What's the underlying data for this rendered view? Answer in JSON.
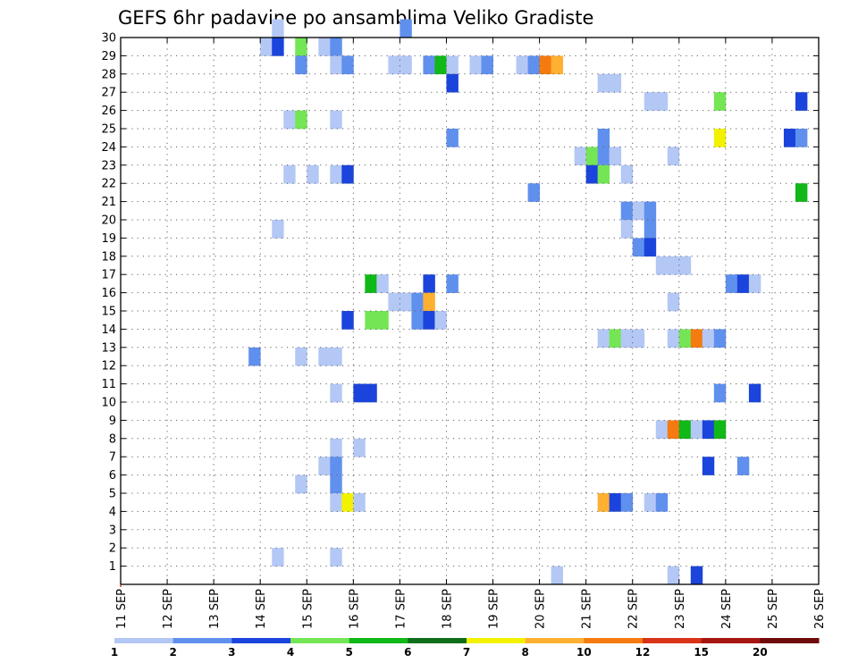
{
  "chart_data": {
    "type": "heatmap",
    "title": "GEFS 6hr padavine po ansamblima Veliko Gradiste",
    "xlabel": "",
    "ylabel": "",
    "grid": true,
    "x_tick_labels": [
      "11 SEP",
      "12 SEP",
      "13 SEP",
      "14 SEP",
      "15 SEP",
      "16 SEP",
      "17 SEP",
      "18 SEP",
      "19 SEP",
      "20 SEP",
      "21 SEP",
      "22 SEP",
      "23 SEP",
      "24 SEP",
      "25 SEP",
      "26 SEP"
    ],
    "x_range_steps": [
      0,
      60
    ],
    "steps_per_day": 4,
    "y_tick_labels": [
      "1",
      "2",
      "3",
      "4",
      "5",
      "6",
      "7",
      "8",
      "9",
      "10",
      "11",
      "12",
      "13",
      "14",
      "15",
      "16",
      "17",
      "18",
      "19",
      "20",
      "21",
      "22",
      "23",
      "24",
      "25",
      "26",
      "27",
      "28",
      "29",
      "30"
    ],
    "y_range": [
      0,
      30
    ],
    "legend": {
      "placement": "bottom",
      "labels": [
        "1",
        "2",
        "3",
        "4",
        "5",
        "6",
        "7",
        "8",
        "10",
        "12",
        "15",
        "20"
      ],
      "colors": [
        "#b4c8f5",
        "#6090ee",
        "#1a44dc",
        "#74e656",
        "#10b818",
        "#0f6e1a",
        "#f2f200",
        "#ffb030",
        "#f57a10",
        "#d83418",
        "#a81612",
        "#6e0a0a"
      ]
    },
    "bins": [
      1,
      2,
      3,
      4,
      5,
      6,
      7,
      8,
      10,
      12,
      15,
      20
    ],
    "cells": [
      [
        13,
        30,
        1
      ],
      [
        24,
        30,
        2
      ],
      [
        12,
        29,
        1
      ],
      [
        13,
        29,
        3
      ],
      [
        15,
        29,
        4
      ],
      [
        17,
        29,
        1
      ],
      [
        18,
        29,
        2
      ],
      [
        15,
        28,
        2
      ],
      [
        18,
        28,
        1
      ],
      [
        19,
        28,
        2
      ],
      [
        23,
        28,
        1
      ],
      [
        24,
        28,
        1
      ],
      [
        26,
        28,
        2
      ],
      [
        27,
        28,
        5
      ],
      [
        28,
        28,
        1
      ],
      [
        30,
        28,
        1
      ],
      [
        31,
        28,
        2
      ],
      [
        34,
        28,
        1
      ],
      [
        35,
        28,
        2
      ],
      [
        36,
        28,
        10
      ],
      [
        37,
        28,
        8
      ],
      [
        28,
        27,
        3
      ],
      [
        41,
        27,
        1
      ],
      [
        42,
        27,
        1
      ],
      [
        45,
        26,
        1
      ],
      [
        46,
        26,
        1
      ],
      [
        51,
        26,
        4
      ],
      [
        58,
        26,
        3
      ],
      [
        14,
        25,
        1
      ],
      [
        15,
        25,
        4
      ],
      [
        18,
        25,
        1
      ],
      [
        28,
        24,
        2
      ],
      [
        41,
        24,
        2
      ],
      [
        51,
        24,
        7
      ],
      [
        57,
        24,
        3
      ],
      [
        58,
        24,
        2
      ],
      [
        39,
        23,
        1
      ],
      [
        40,
        23,
        4
      ],
      [
        41,
        23,
        2
      ],
      [
        42,
        23,
        1
      ],
      [
        47,
        23,
        1
      ],
      [
        14,
        22,
        1
      ],
      [
        16,
        22,
        1
      ],
      [
        18,
        22,
        1
      ],
      [
        19,
        22,
        3
      ],
      [
        40,
        22,
        3
      ],
      [
        41,
        22,
        4
      ],
      [
        43,
        22,
        1
      ],
      [
        35,
        21,
        2
      ],
      [
        58,
        21,
        5
      ],
      [
        43,
        20,
        2
      ],
      [
        44,
        20,
        1
      ],
      [
        45,
        20,
        2
      ],
      [
        13,
        19,
        1
      ],
      [
        43,
        19,
        1
      ],
      [
        45,
        19,
        2
      ],
      [
        44,
        18,
        2
      ],
      [
        45,
        18,
        3
      ],
      [
        46,
        17,
        1
      ],
      [
        47,
        17,
        1
      ],
      [
        48,
        17,
        1
      ],
      [
        21,
        16,
        5
      ],
      [
        22,
        16,
        1
      ],
      [
        26,
        16,
        3
      ],
      [
        28,
        16,
        2
      ],
      [
        52,
        16,
        2
      ],
      [
        53,
        16,
        3
      ],
      [
        54,
        16,
        1
      ],
      [
        23,
        15,
        1
      ],
      [
        24,
        15,
        1
      ],
      [
        25,
        15,
        2
      ],
      [
        26,
        15,
        8
      ],
      [
        47,
        15,
        1
      ],
      [
        19,
        14,
        3
      ],
      [
        21,
        14,
        4
      ],
      [
        22,
        14,
        4
      ],
      [
        25,
        14,
        2
      ],
      [
        26,
        14,
        3
      ],
      [
        27,
        14,
        1
      ],
      [
        41,
        13,
        1
      ],
      [
        42,
        13,
        4
      ],
      [
        43,
        13,
        1
      ],
      [
        44,
        13,
        1
      ],
      [
        47,
        13,
        1
      ],
      [
        48,
        13,
        4
      ],
      [
        49,
        13,
        10
      ],
      [
        50,
        13,
        1
      ],
      [
        51,
        13,
        2
      ],
      [
        11,
        12,
        2
      ],
      [
        15,
        12,
        1
      ],
      [
        17,
        12,
        1
      ],
      [
        18,
        12,
        1
      ],
      [
        18,
        10,
        1
      ],
      [
        20,
        10,
        3
      ],
      [
        21,
        10,
        3
      ],
      [
        51,
        10,
        2
      ],
      [
        54,
        10,
        3
      ],
      [
        46,
        8,
        1
      ],
      [
        47,
        8,
        10
      ],
      [
        48,
        8,
        5
      ],
      [
        49,
        8,
        1
      ],
      [
        50,
        8,
        3
      ],
      [
        51,
        8,
        5
      ],
      [
        18,
        7,
        1
      ],
      [
        20,
        7,
        1
      ],
      [
        17,
        6,
        1
      ],
      [
        18,
        6,
        2
      ],
      [
        50,
        6,
        3
      ],
      [
        53,
        6,
        2
      ],
      [
        15,
        5,
        1
      ],
      [
        18,
        5,
        2
      ],
      [
        18,
        4,
        1
      ],
      [
        19,
        4,
        7
      ],
      [
        20,
        4,
        1
      ],
      [
        41,
        4,
        8
      ],
      [
        42,
        4,
        3
      ],
      [
        43,
        4,
        2
      ],
      [
        45,
        4,
        1
      ],
      [
        46,
        4,
        2
      ],
      [
        13,
        1,
        1
      ],
      [
        18,
        1,
        1
      ],
      [
        37,
        0,
        1
      ],
      [
        47,
        0,
        1
      ],
      [
        49,
        0,
        3
      ]
    ]
  }
}
